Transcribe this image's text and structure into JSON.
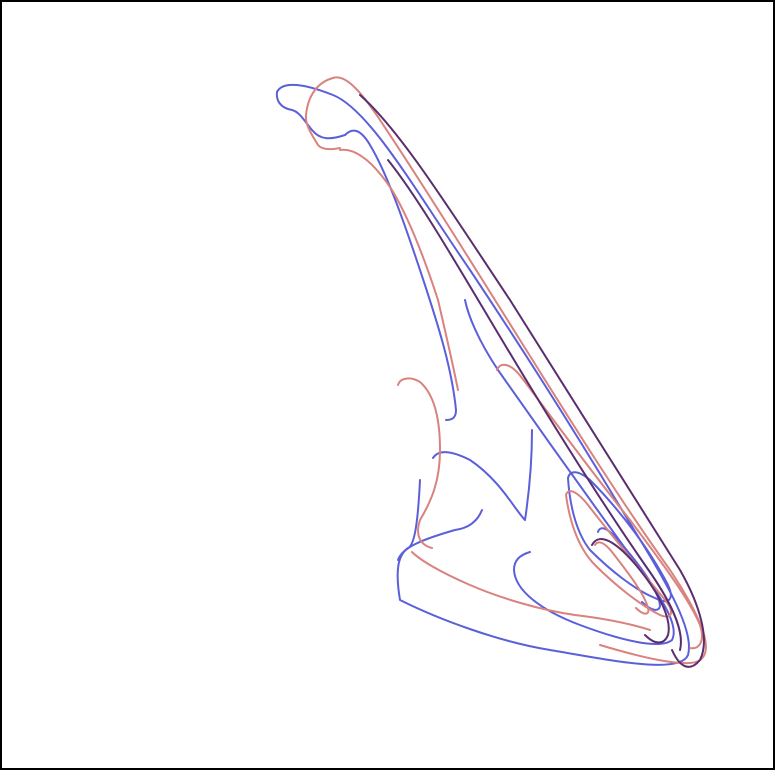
{
  "figure": {
    "background": "#ffffff",
    "frame_color": "#000000",
    "series_colors": {
      "blue": "#5b5fd9",
      "red": "#d9827e",
      "purple": "#5a2e6e"
    },
    "curve_count": 19
  }
}
